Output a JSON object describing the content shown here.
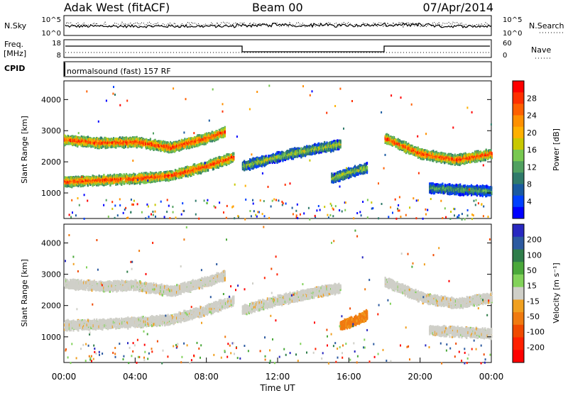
{
  "header": {
    "title": "Adak West (fitACF)",
    "beam": "Beam 00",
    "date": "07/Apr/2014"
  },
  "panels": {
    "nsky_label": "N.Sky",
    "nsky_ticks": [
      "10^5",
      "10^0"
    ],
    "nsearch_label": "N.Search",
    "nsearch_ticks": [
      "10^5",
      "10^0"
    ],
    "freq_label": "Freq.",
    "freq_unit": "[MHz]",
    "freq_ticks": [
      "18",
      "8"
    ],
    "nave_label": "Nave",
    "nave_ticks": [
      "60",
      "0"
    ],
    "cpid_label": "CPID",
    "cpid_text": "normalsound (fast) 157 RF"
  },
  "chart_data": [
    {
      "type": "heatmap",
      "name": "power",
      "ylabel": "Slant Range [km]",
      "yticks": [
        "1000",
        "2000",
        "3000",
        "4000"
      ],
      "ylim": [
        180,
        4600
      ],
      "colorbar": {
        "label": "Power [dB]",
        "ticks": [
          "28",
          "24",
          "20",
          "16",
          "12",
          "8",
          "4"
        ],
        "colors": [
          "#ff0000",
          "#ff3000",
          "#ff6000",
          "#ff9000",
          "#ffb000",
          "#c8c800",
          "#78c850",
          "#50a060",
          "#2f7a6a",
          "#1a5aa0",
          "#0040ff",
          "#0000ff"
        ]
      },
      "bands": [
        {
          "x": [
            0,
            2,
            4,
            6,
            8,
            9
          ],
          "y": [
            2750,
            2650,
            2680,
            2500,
            2800,
            3000
          ],
          "intensity": "high"
        },
        {
          "x": [
            0,
            2,
            4,
            6,
            8,
            9.5
          ],
          "y": [
            1400,
            1450,
            1500,
            1600,
            1900,
            2200
          ],
          "intensity": "high"
        },
        {
          "x": [
            10,
            12,
            14,
            15.5
          ],
          "y": [
            1900,
            2200,
            2450,
            2600
          ],
          "intensity": "medium"
        },
        {
          "x": [
            15,
            16,
            17
          ],
          "y": [
            1500,
            1700,
            1850
          ],
          "intensity": "medium"
        },
        {
          "x": [
            18,
            20,
            22,
            24
          ],
          "y": [
            2800,
            2300,
            2100,
            2300
          ],
          "intensity": "high"
        },
        {
          "x": [
            20.5,
            22,
            24
          ],
          "y": [
            1200,
            1150,
            1100
          ],
          "intensity": "low"
        }
      ]
    },
    {
      "type": "heatmap",
      "name": "velocity",
      "ylabel": "Slant Range [km]",
      "yticks": [
        "1000",
        "2000",
        "3000",
        "4000"
      ],
      "ylim": [
        180,
        4600
      ],
      "colorbar": {
        "label": "Velocity [m s⁻¹]",
        "ticks": [
          "200",
          "100",
          "50",
          "15",
          "-15",
          "-50",
          "-100",
          "-200"
        ],
        "colors": [
          "#2828c0",
          "#2c5aa0",
          "#2f7d4a",
          "#4aa83a",
          "#82d25a",
          "#cfcfc8",
          "#f0a020",
          "#f07a10",
          "#f04a00",
          "#ff2000",
          "#ff0000"
        ]
      },
      "bands": [
        {
          "x": [
            0,
            2,
            4,
            6,
            8,
            9
          ],
          "y": [
            2750,
            2650,
            2680,
            2500,
            2800,
            3000
          ],
          "color": "ground"
        },
        {
          "x": [
            0,
            2,
            4,
            6,
            8,
            9.5
          ],
          "y": [
            1400,
            1450,
            1500,
            1600,
            1900,
            2200
          ],
          "color": "ground"
        },
        {
          "x": [
            10,
            12,
            14,
            15.5
          ],
          "y": [
            1900,
            2200,
            2450,
            2600
          ],
          "color": "ground"
        },
        {
          "x": [
            15.5,
            16.5,
            17
          ],
          "y": [
            1400,
            1600,
            1750
          ],
          "color": "negative"
        },
        {
          "x": [
            18,
            20,
            22,
            24
          ],
          "y": [
            2800,
            2300,
            2100,
            2300
          ],
          "color": "ground"
        },
        {
          "x": [
            20.5,
            22,
            24
          ],
          "y": [
            1250,
            1200,
            1150
          ],
          "color": "ground"
        }
      ]
    }
  ],
  "xaxis": {
    "label": "Time UT",
    "ticks": [
      "00:00",
      "04:00",
      "08:00",
      "12:00",
      "16:00",
      "20:00",
      "00:00"
    ]
  }
}
